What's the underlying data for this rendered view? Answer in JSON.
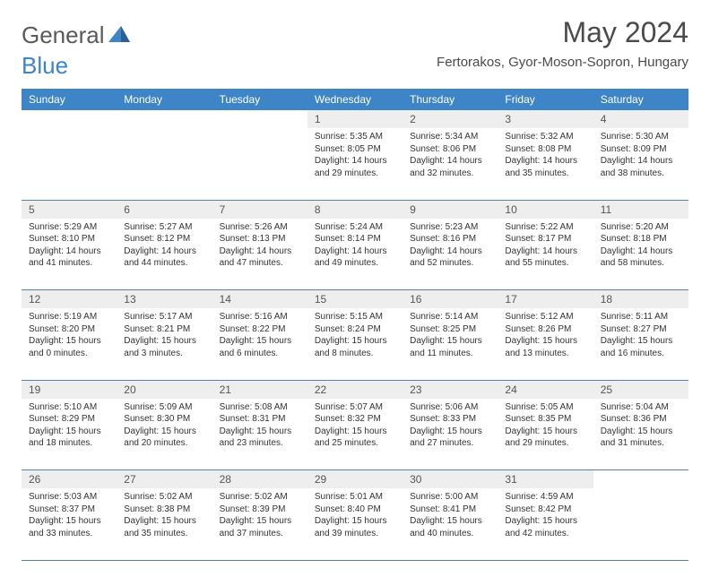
{
  "brand": {
    "part1": "General",
    "part2": "Blue"
  },
  "title": "May 2024",
  "location": "Fertorakos, Gyor-Moson-Sopron, Hungary",
  "colors": {
    "header_bg": "#3d85c6",
    "header_text": "#ffffff",
    "daynum_bg": "#eeeeee",
    "border": "#5a7fa8",
    "body_text": "#333333",
    "title_text": "#4a4a4a",
    "logo_gray": "#5a5a5a",
    "logo_blue": "#3d85c6"
  },
  "typography": {
    "title_fontsize": 32,
    "location_fontsize": 15,
    "header_fontsize": 12,
    "daynum_fontsize": 12,
    "detail_fontsize": 10
  },
  "day_headers": [
    "Sunday",
    "Monday",
    "Tuesday",
    "Wednesday",
    "Thursday",
    "Friday",
    "Saturday"
  ],
  "weeks": [
    {
      "nums": [
        "",
        "",
        "",
        "1",
        "2",
        "3",
        "4"
      ],
      "details": [
        {},
        {},
        {},
        {
          "sunrise": "Sunrise: 5:35 AM",
          "sunset": "Sunset: 8:05 PM",
          "day1": "Daylight: 14 hours",
          "day2": "and 29 minutes."
        },
        {
          "sunrise": "Sunrise: 5:34 AM",
          "sunset": "Sunset: 8:06 PM",
          "day1": "Daylight: 14 hours",
          "day2": "and 32 minutes."
        },
        {
          "sunrise": "Sunrise: 5:32 AM",
          "sunset": "Sunset: 8:08 PM",
          "day1": "Daylight: 14 hours",
          "day2": "and 35 minutes."
        },
        {
          "sunrise": "Sunrise: 5:30 AM",
          "sunset": "Sunset: 8:09 PM",
          "day1": "Daylight: 14 hours",
          "day2": "and 38 minutes."
        }
      ]
    },
    {
      "nums": [
        "5",
        "6",
        "7",
        "8",
        "9",
        "10",
        "11"
      ],
      "details": [
        {
          "sunrise": "Sunrise: 5:29 AM",
          "sunset": "Sunset: 8:10 PM",
          "day1": "Daylight: 14 hours",
          "day2": "and 41 minutes."
        },
        {
          "sunrise": "Sunrise: 5:27 AM",
          "sunset": "Sunset: 8:12 PM",
          "day1": "Daylight: 14 hours",
          "day2": "and 44 minutes."
        },
        {
          "sunrise": "Sunrise: 5:26 AM",
          "sunset": "Sunset: 8:13 PM",
          "day1": "Daylight: 14 hours",
          "day2": "and 47 minutes."
        },
        {
          "sunrise": "Sunrise: 5:24 AM",
          "sunset": "Sunset: 8:14 PM",
          "day1": "Daylight: 14 hours",
          "day2": "and 49 minutes."
        },
        {
          "sunrise": "Sunrise: 5:23 AM",
          "sunset": "Sunset: 8:16 PM",
          "day1": "Daylight: 14 hours",
          "day2": "and 52 minutes."
        },
        {
          "sunrise": "Sunrise: 5:22 AM",
          "sunset": "Sunset: 8:17 PM",
          "day1": "Daylight: 14 hours",
          "day2": "and 55 minutes."
        },
        {
          "sunrise": "Sunrise: 5:20 AM",
          "sunset": "Sunset: 8:18 PM",
          "day1": "Daylight: 14 hours",
          "day2": "and 58 minutes."
        }
      ]
    },
    {
      "nums": [
        "12",
        "13",
        "14",
        "15",
        "16",
        "17",
        "18"
      ],
      "details": [
        {
          "sunrise": "Sunrise: 5:19 AM",
          "sunset": "Sunset: 8:20 PM",
          "day1": "Daylight: 15 hours",
          "day2": "and 0 minutes."
        },
        {
          "sunrise": "Sunrise: 5:17 AM",
          "sunset": "Sunset: 8:21 PM",
          "day1": "Daylight: 15 hours",
          "day2": "and 3 minutes."
        },
        {
          "sunrise": "Sunrise: 5:16 AM",
          "sunset": "Sunset: 8:22 PM",
          "day1": "Daylight: 15 hours",
          "day2": "and 6 minutes."
        },
        {
          "sunrise": "Sunrise: 5:15 AM",
          "sunset": "Sunset: 8:24 PM",
          "day1": "Daylight: 15 hours",
          "day2": "and 8 minutes."
        },
        {
          "sunrise": "Sunrise: 5:14 AM",
          "sunset": "Sunset: 8:25 PM",
          "day1": "Daylight: 15 hours",
          "day2": "and 11 minutes."
        },
        {
          "sunrise": "Sunrise: 5:12 AM",
          "sunset": "Sunset: 8:26 PM",
          "day1": "Daylight: 15 hours",
          "day2": "and 13 minutes."
        },
        {
          "sunrise": "Sunrise: 5:11 AM",
          "sunset": "Sunset: 8:27 PM",
          "day1": "Daylight: 15 hours",
          "day2": "and 16 minutes."
        }
      ]
    },
    {
      "nums": [
        "19",
        "20",
        "21",
        "22",
        "23",
        "24",
        "25"
      ],
      "details": [
        {
          "sunrise": "Sunrise: 5:10 AM",
          "sunset": "Sunset: 8:29 PM",
          "day1": "Daylight: 15 hours",
          "day2": "and 18 minutes."
        },
        {
          "sunrise": "Sunrise: 5:09 AM",
          "sunset": "Sunset: 8:30 PM",
          "day1": "Daylight: 15 hours",
          "day2": "and 20 minutes."
        },
        {
          "sunrise": "Sunrise: 5:08 AM",
          "sunset": "Sunset: 8:31 PM",
          "day1": "Daylight: 15 hours",
          "day2": "and 23 minutes."
        },
        {
          "sunrise": "Sunrise: 5:07 AM",
          "sunset": "Sunset: 8:32 PM",
          "day1": "Daylight: 15 hours",
          "day2": "and 25 minutes."
        },
        {
          "sunrise": "Sunrise: 5:06 AM",
          "sunset": "Sunset: 8:33 PM",
          "day1": "Daylight: 15 hours",
          "day2": "and 27 minutes."
        },
        {
          "sunrise": "Sunrise: 5:05 AM",
          "sunset": "Sunset: 8:35 PM",
          "day1": "Daylight: 15 hours",
          "day2": "and 29 minutes."
        },
        {
          "sunrise": "Sunrise: 5:04 AM",
          "sunset": "Sunset: 8:36 PM",
          "day1": "Daylight: 15 hours",
          "day2": "and 31 minutes."
        }
      ]
    },
    {
      "nums": [
        "26",
        "27",
        "28",
        "29",
        "30",
        "31",
        ""
      ],
      "details": [
        {
          "sunrise": "Sunrise: 5:03 AM",
          "sunset": "Sunset: 8:37 PM",
          "day1": "Daylight: 15 hours",
          "day2": "and 33 minutes."
        },
        {
          "sunrise": "Sunrise: 5:02 AM",
          "sunset": "Sunset: 8:38 PM",
          "day1": "Daylight: 15 hours",
          "day2": "and 35 minutes."
        },
        {
          "sunrise": "Sunrise: 5:02 AM",
          "sunset": "Sunset: 8:39 PM",
          "day1": "Daylight: 15 hours",
          "day2": "and 37 minutes."
        },
        {
          "sunrise": "Sunrise: 5:01 AM",
          "sunset": "Sunset: 8:40 PM",
          "day1": "Daylight: 15 hours",
          "day2": "and 39 minutes."
        },
        {
          "sunrise": "Sunrise: 5:00 AM",
          "sunset": "Sunset: 8:41 PM",
          "day1": "Daylight: 15 hours",
          "day2": "and 40 minutes."
        },
        {
          "sunrise": "Sunrise: 4:59 AM",
          "sunset": "Sunset: 8:42 PM",
          "day1": "Daylight: 15 hours",
          "day2": "and 42 minutes."
        },
        {}
      ]
    }
  ]
}
